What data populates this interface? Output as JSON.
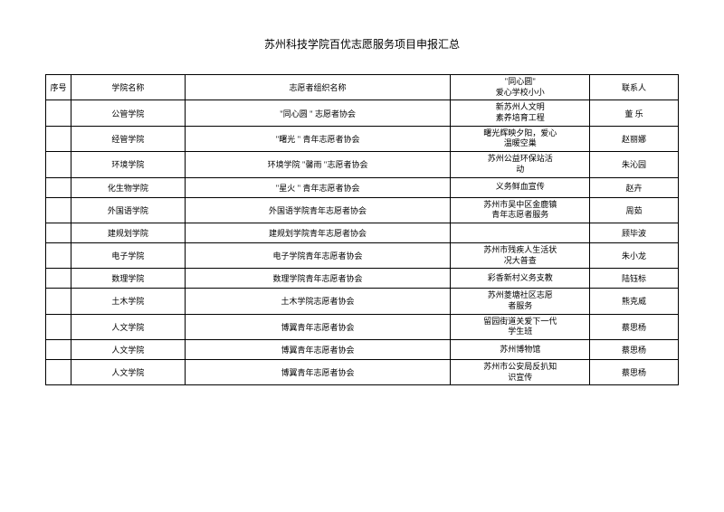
{
  "title": "苏州科技学院百优志愿服务项目申报汇总",
  "headers": {
    "num": "序号",
    "school": "学院名称",
    "org": "志愿者组织名称",
    "proj_top": "\"同心圆\"",
    "proj_bottom": "爱心学校小小",
    "contact": "联系人"
  },
  "rows": [
    {
      "school": "公管学院",
      "org": "\"同心圆 \" 志愿者协会",
      "proj": "新苏州人文明\n素养培育工程",
      "contact": "董 乐"
    },
    {
      "school": "经管学院",
      "org": "\"曙光 \" 青年志愿者协会",
      "proj": "曙光辉映夕阳，爱心\n温暖空巢",
      "contact": "赵丽娜"
    },
    {
      "school": "环境学院",
      "org": "环境学院 \"馨雨 \"志愿者协会",
      "proj": "苏州公益环保站活\n动",
      "contact": "朱沁园"
    },
    {
      "school": "化生物学院",
      "org": "\"星火 \" 青年志愿者协会",
      "proj": "义务鲜血宣传",
      "contact": "赵卉"
    },
    {
      "school": "外国语学院",
      "org": "外国语学院青年志愿者协会",
      "proj": "苏州市吴中区金鹿镇\n青年志愿者服务",
      "contact": "周茹"
    },
    {
      "school": "建规划学院",
      "org": "建规划学院青年志愿者协会",
      "proj": "",
      "contact": "顾毕波"
    },
    {
      "school": "电子学院",
      "org": "电子学院青年志愿者协会",
      "proj": "苏州市残疾人生活状\n况大普查",
      "contact": "朱小龙"
    },
    {
      "school": "数理学院",
      "org": "数理学院青年志愿者协会",
      "proj": "彩香新村义务支教",
      "contact": "陆钰标"
    },
    {
      "school": "土木学院",
      "org": "土木学院志愿者协会",
      "proj": "苏州菱塘社区志愿\n者服务",
      "contact": "熊克威"
    },
    {
      "school": "人文学院",
      "org": "博翼青年志愿者协会",
      "proj": "留园街道关爱下一代\n学生班",
      "contact": "蔡思杨"
    },
    {
      "school": "人文学院",
      "org": "博翼青年志愿者协会",
      "proj": "苏州博物馆",
      "contact": "蔡思杨"
    },
    {
      "school": "人文学院",
      "org": "博翼青年志愿者协会",
      "proj": "苏州市公安局反扒知\n识宣传",
      "contact": "蔡思杨"
    }
  ]
}
